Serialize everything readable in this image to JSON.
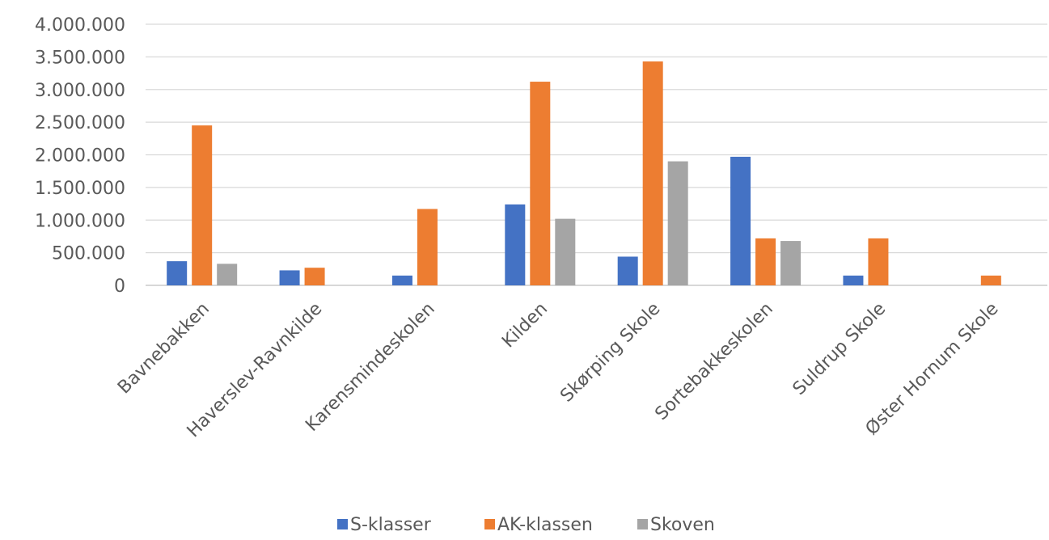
{
  "chart_data": {
    "type": "bar",
    "categories": [
      "Bavnebakken",
      "Haverslev-Ravnkilde",
      "Karensmindeskolen",
      "Kilden",
      "Skørping Skole",
      "Sortebakkeskolen",
      "Suldrup Skole",
      "Øster Hornum Skole"
    ],
    "series": [
      {
        "name": "S-klasser",
        "color": "#4472C4",
        "values": [
          370000,
          230000,
          150000,
          1240000,
          440000,
          1970000,
          150000,
          0
        ]
      },
      {
        "name": "AK-klassen",
        "color": "#ED7D31",
        "values": [
          2450000,
          270000,
          1170000,
          3120000,
          3430000,
          720000,
          720000,
          150000
        ]
      },
      {
        "name": "Skoven",
        "color": "#A5A5A5",
        "values": [
          330000,
          0,
          0,
          1020000,
          1900000,
          680000,
          0,
          0
        ]
      }
    ],
    "yticks": [
      "0",
      "500.000",
      "1.000.000",
      "1.500.000",
      "2.000.000",
      "2.500.000",
      "3.000.000",
      "3.500.000",
      "4.000.000"
    ],
    "ylim": [
      0,
      4000000
    ],
    "grid": true,
    "legend": "bottom"
  }
}
